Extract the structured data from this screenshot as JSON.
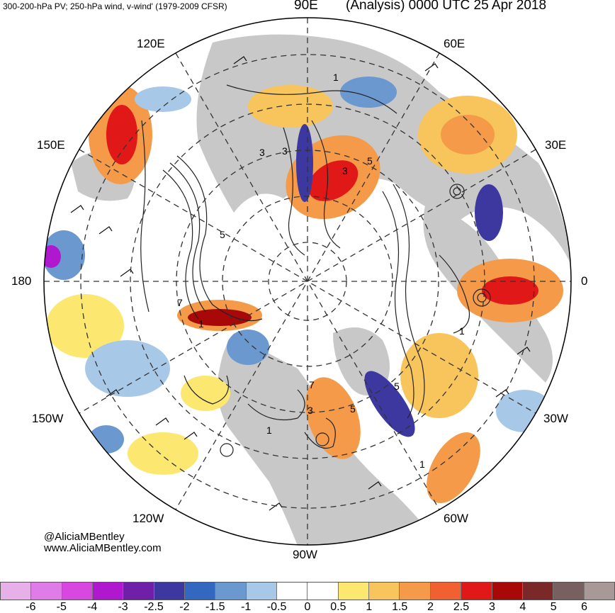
{
  "header": {
    "left_text": "300-200-hPa PV; 250-hPa wind, v-wind' (1979-2009 CFSR)",
    "right_text": "(Analysis) 0000 UTC 25 Apr 2018"
  },
  "longitude_labels": {
    "lon_90e": "90E",
    "lon_120e": "120E",
    "lon_60e": "60E",
    "lon_150e": "150E",
    "lon_30e": "30E",
    "lon_180": "180",
    "lon_0": "0",
    "lon_150w": "150W",
    "lon_30w": "30W",
    "lon_120w": "120W",
    "lon_60w": "60W",
    "lon_90w": "90W"
  },
  "contour_labels": [
    "1",
    "3",
    "3",
    "5",
    "3",
    "5",
    "7",
    "1",
    "1",
    "3",
    "7",
    "1",
    "5",
    "5",
    "1"
  ],
  "credits": {
    "handle": "@AliciaMBentley",
    "website": "www.AliciaMBentley.com"
  },
  "colorbar": {
    "colors": [
      "#e8b0e8",
      "#e07ce8",
      "#d848e0",
      "#b018d0",
      "#7020a8",
      "#3c38a0",
      "#3468c0",
      "#6c98d0",
      "#a8c8e8",
      "#ffffff",
      "#ffffff",
      "#fce870",
      "#f8c45c",
      "#f49a48",
      "#f06030",
      "#e01818",
      "#a80808",
      "#7a2828",
      "#786060",
      "#a89898"
    ],
    "ticks": [
      "-6",
      "-5",
      "-4",
      "-3",
      "-2.5",
      "-2",
      "-1.5",
      "-1",
      "-0.5",
      "0",
      "0.5",
      "1",
      "1.5",
      "2",
      "2.5",
      "3",
      "4",
      "5",
      "6"
    ]
  }
}
